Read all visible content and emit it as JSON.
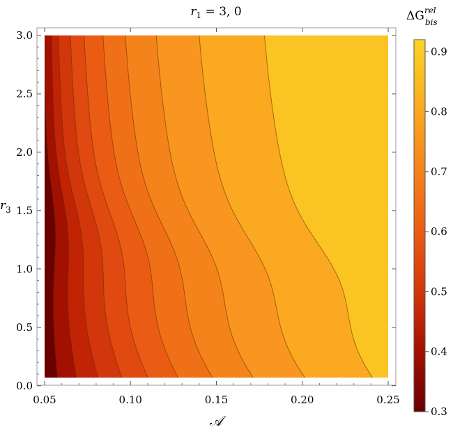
{
  "chart_data": {
    "type": "contour",
    "title_var": "r",
    "title_sub": "1",
    "title_rest": " = 3, 0",
    "xlabel": "𝒜",
    "ylabel_var": "r",
    "ylabel_sub": "3",
    "colorbar_label_main": "ΔG",
    "colorbar_label_sup": "rel",
    "colorbar_label_sub": "bis",
    "xlim": [
      0.05,
      0.25
    ],
    "ylim": [
      0.0,
      3.0
    ],
    "data_ylim": [
      0.07,
      3.0
    ],
    "x_ticks": [
      {
        "value": 0.05,
        "label": "0.05"
      },
      {
        "value": 0.1,
        "label": "0.10"
      },
      {
        "value": 0.15,
        "label": "0.15"
      },
      {
        "value": 0.2,
        "label": "0.20"
      },
      {
        "value": 0.25,
        "label": "0.25"
      }
    ],
    "y_ticks": [
      {
        "value": 0.0,
        "label": "0.0"
      },
      {
        "value": 0.5,
        "label": "0.5"
      },
      {
        "value": 1.0,
        "label": "1.0"
      },
      {
        "value": 1.5,
        "label": "1.5"
      },
      {
        "value": 2.0,
        "label": "2.0"
      },
      {
        "value": 2.5,
        "label": "2.5"
      },
      {
        "value": 3.0,
        "label": "3.0"
      }
    ],
    "colorbar_range": [
      0.3,
      0.92
    ],
    "colorbar_ticks": [
      {
        "value": 0.3,
        "label": "0.3"
      },
      {
        "value": 0.4,
        "label": "0.4"
      },
      {
        "value": 0.5,
        "label": "0.5"
      },
      {
        "value": 0.6,
        "label": "0.6"
      },
      {
        "value": 0.7,
        "label": "0.7"
      },
      {
        "value": 0.8,
        "label": "0.8"
      },
      {
        "value": 0.9,
        "label": "0.9"
      }
    ],
    "bands": [
      {
        "color": "#6b0000",
        "boundary": null
      },
      {
        "color": "#a11000",
        "boundary": {
          "top_x": 0.05,
          "bottom_x": 0.0575,
          "bulge": 0.004,
          "r_mid": 1.35
        }
      },
      {
        "color": "#c12405",
        "boundary": {
          "top_x": 0.054,
          "bottom_x": 0.0685,
          "bulge": 0.005,
          "r_mid": 1.3
        }
      },
      {
        "color": "#d2360b",
        "boundary": {
          "top_x": 0.058,
          "bottom_x": 0.081,
          "bulge": 0.006,
          "r_mid": 1.25
        }
      },
      {
        "color": "#e04910",
        "boundary": {
          "top_x": 0.065,
          "bottom_x": 0.095,
          "bulge": 0.007,
          "r_mid": 1.2
        }
      },
      {
        "color": "#ea5c14",
        "boundary": {
          "top_x": 0.073,
          "bottom_x": 0.11,
          "bulge": 0.008,
          "r_mid": 1.15
        }
      },
      {
        "color": "#f07018",
        "boundary": {
          "top_x": 0.084,
          "bottom_x": 0.1275,
          "bulge": 0.009,
          "r_mid": 1.1
        }
      },
      {
        "color": "#f5831c",
        "boundary": {
          "top_x": 0.097,
          "bottom_x": 0.1475,
          "bulge": 0.01,
          "r_mid": 1.05
        }
      },
      {
        "color": "#f8961f",
        "boundary": {
          "top_x": 0.115,
          "bottom_x": 0.171,
          "bulge": 0.011,
          "r_mid": 1.0
        }
      },
      {
        "color": "#faa921",
        "boundary": {
          "top_x": 0.14,
          "bottom_x": 0.201,
          "bulge": 0.012,
          "r_mid": 0.95
        }
      },
      {
        "color": "#fcc423",
        "boundary": {
          "top_x": 0.178,
          "bottom_x": 0.24,
          "bulge": 0.014,
          "r_mid": 0.9
        }
      }
    ]
  }
}
